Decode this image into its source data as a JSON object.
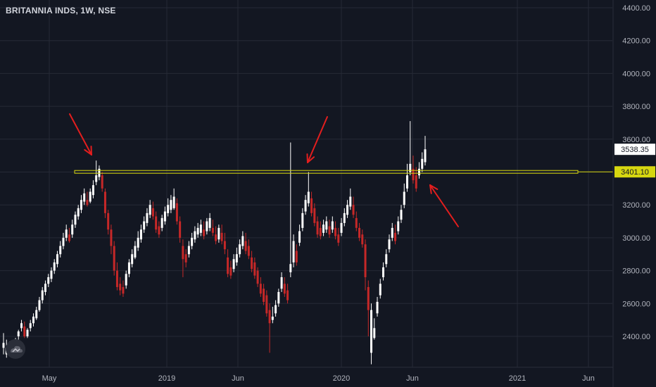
{
  "header": {
    "symbol_title": "BRITANNIA INDS, 1W, NSE"
  },
  "colors": {
    "background": "#131722",
    "grid": "#262a36",
    "up_candle": "#ffffff",
    "down_candle": "#c62828",
    "level_line": "#d7d710",
    "annotation_arrow": "#e31e1e",
    "axis_text": "#b2b5be"
  },
  "chart_data": {
    "type": "candlestick",
    "title": "BRITANNIA INDS, 1W, NSE",
    "ylim": [
      2200,
      4450
    ],
    "y_ticks": [
      "4400.00",
      "4200.00",
      "4000.00",
      "3800.00",
      "3600.00",
      "3400.00",
      "3200.00",
      "3000.00",
      "2800.00",
      "2600.00",
      "2400.00"
    ],
    "x_ticks": [
      "May",
      "2019",
      "Jun",
      "2020",
      "Jun",
      "2021",
      "Jun"
    ],
    "grid": true,
    "price_labels": {
      "last_price": "3538.35",
      "level_price": "3401.10"
    },
    "horizontal_level": 3401.1,
    "annotations": [
      {
        "type": "arrow",
        "direction": "down-right",
        "target": "first peak"
      },
      {
        "type": "arrow",
        "direction": "down-left",
        "target": "second peak"
      },
      {
        "type": "arrow",
        "direction": "up-left",
        "target": "breakout"
      }
    ],
    "candles": [
      [
        2360,
        2420,
        2330,
        2290,
        "up"
      ],
      [
        2330,
        2380,
        2290,
        2270,
        "up"
      ],
      [
        2350,
        2370,
        2330,
        2310,
        "up"
      ],
      [
        2330,
        2350,
        2300,
        2280,
        "up"
      ],
      [
        2380,
        2390,
        2350,
        2330,
        "up"
      ],
      [
        2430,
        2440,
        2400,
        2380,
        "up"
      ],
      [
        2480,
        2500,
        2450,
        2430,
        "up"
      ],
      [
        2460,
        2490,
        2400,
        2390,
        "down"
      ],
      [
        2440,
        2450,
        2400,
        2390,
        "up"
      ],
      [
        2480,
        2500,
        2450,
        2430,
        "up"
      ],
      [
        2520,
        2540,
        2480,
        2460,
        "up"
      ],
      [
        2560,
        2580,
        2510,
        2500,
        "up"
      ],
      [
        2620,
        2640,
        2560,
        2550,
        "up"
      ],
      [
        2680,
        2700,
        2620,
        2600,
        "up"
      ],
      [
        2720,
        2740,
        2670,
        2650,
        "up"
      ],
      [
        2760,
        2780,
        2720,
        2700,
        "up"
      ],
      [
        2800,
        2820,
        2750,
        2730,
        "up"
      ],
      [
        2850,
        2870,
        2800,
        2780,
        "up"
      ],
      [
        2900,
        2920,
        2840,
        2820,
        "up"
      ],
      [
        2950,
        2980,
        2900,
        2880,
        "up"
      ],
      [
        3000,
        3030,
        2950,
        2930,
        "up"
      ],
      [
        3050,
        3080,
        3000,
        2980,
        "up"
      ],
      [
        3020,
        3060,
        2980,
        2970,
        "down"
      ],
      [
        3080,
        3110,
        3020,
        3000,
        "up"
      ],
      [
        3140,
        3160,
        3080,
        3060,
        "up"
      ],
      [
        3180,
        3200,
        3130,
        3110,
        "up"
      ],
      [
        3230,
        3260,
        3170,
        3150,
        "up"
      ],
      [
        3270,
        3300,
        3220,
        3200,
        "up"
      ],
      [
        3230,
        3280,
        3200,
        3190,
        "down"
      ],
      [
        3280,
        3300,
        3220,
        3210,
        "up"
      ],
      [
        3320,
        3350,
        3260,
        3240,
        "up"
      ],
      [
        3380,
        3470,
        3340,
        3320,
        "up"
      ],
      [
        3420,
        3440,
        3370,
        3350,
        "up"
      ],
      [
        3380,
        3400,
        3300,
        3280,
        "down"
      ],
      [
        3280,
        3300,
        3150,
        3120,
        "down"
      ],
      [
        3150,
        3170,
        3050,
        3020,
        "down"
      ],
      [
        3050,
        3080,
        2950,
        2900,
        "down"
      ],
      [
        2950,
        2980,
        2800,
        2770,
        "down"
      ],
      [
        2800,
        2850,
        2700,
        2680,
        "down"
      ],
      [
        2720,
        2760,
        2680,
        2650,
        "down"
      ],
      [
        2700,
        2740,
        2660,
        2640,
        "down"
      ],
      [
        2780,
        2800,
        2710,
        2690,
        "up"
      ],
      [
        2850,
        2870,
        2780,
        2760,
        "up"
      ],
      [
        2900,
        2930,
        2840,
        2820,
        "up"
      ],
      [
        2950,
        2980,
        2880,
        2870,
        "up"
      ],
      [
        3000,
        3040,
        2940,
        2920,
        "up"
      ],
      [
        3050,
        3080,
        2990,
        2970,
        "up"
      ],
      [
        3100,
        3130,
        3050,
        3030,
        "up"
      ],
      [
        3150,
        3180,
        3090,
        3070,
        "up"
      ],
      [
        3200,
        3230,
        3140,
        3120,
        "up"
      ],
      [
        3180,
        3220,
        3130,
        3110,
        "down"
      ],
      [
        3130,
        3160,
        3050,
        3030,
        "down"
      ],
      [
        3070,
        3100,
        3020,
        3000,
        "down"
      ],
      [
        3120,
        3140,
        3060,
        3040,
        "up"
      ],
      [
        3160,
        3190,
        3100,
        3080,
        "up"
      ],
      [
        3200,
        3240,
        3150,
        3130,
        "up"
      ],
      [
        3230,
        3260,
        3170,
        3150,
        "up"
      ],
      [
        3250,
        3300,
        3180,
        3170,
        "up"
      ],
      [
        3210,
        3240,
        3100,
        3080,
        "down"
      ],
      [
        3100,
        3130,
        3000,
        2970,
        "down"
      ],
      [
        2950,
        2990,
        2870,
        2760,
        "down"
      ],
      [
        2900,
        2930,
        2850,
        2820,
        "down"
      ],
      [
        2950,
        2980,
        2900,
        2880,
        "up"
      ],
      [
        3000,
        3030,
        2950,
        2930,
        "up"
      ],
      [
        3040,
        3070,
        2990,
        2970,
        "up"
      ],
      [
        3060,
        3090,
        3020,
        3000,
        "up"
      ],
      [
        3080,
        3110,
        3030,
        3010,
        "up"
      ],
      [
        3050,
        3100,
        3010,
        2990,
        "down"
      ],
      [
        3100,
        3120,
        3040,
        3020,
        "up"
      ],
      [
        3120,
        3150,
        3060,
        3040,
        "up"
      ],
      [
        3060,
        3110,
        3030,
        3010,
        "down"
      ],
      [
        3020,
        3070,
        2980,
        2960,
        "down"
      ],
      [
        3060,
        3080,
        2990,
        2970,
        "up"
      ],
      [
        3030,
        3080,
        2980,
        2960,
        "down"
      ],
      [
        2980,
        3030,
        2930,
        2900,
        "down"
      ],
      [
        2880,
        2930,
        2780,
        2760,
        "down"
      ],
      [
        2820,
        2860,
        2770,
        2750,
        "down"
      ],
      [
        2870,
        2900,
        2810,
        2790,
        "up"
      ],
      [
        2900,
        2940,
        2850,
        2830,
        "up"
      ],
      [
        2960,
        2990,
        2900,
        2880,
        "up"
      ],
      [
        3010,
        3040,
        2950,
        2930,
        "up"
      ],
      [
        2980,
        3030,
        2920,
        2900,
        "down"
      ],
      [
        2950,
        2990,
        2890,
        2870,
        "down"
      ],
      [
        2880,
        2920,
        2810,
        2790,
        "down"
      ],
      [
        2850,
        2880,
        2770,
        2750,
        "down"
      ],
      [
        2800,
        2820,
        2720,
        2700,
        "down"
      ],
      [
        2720,
        2760,
        2660,
        2640,
        "down"
      ],
      [
        2690,
        2720,
        2610,
        2590,
        "down"
      ],
      [
        2650,
        2680,
        2540,
        2520,
        "down"
      ],
      [
        2560,
        2600,
        2480,
        2300,
        "down"
      ],
      [
        2520,
        2580,
        2500,
        2480,
        "up"
      ],
      [
        2590,
        2620,
        2540,
        2520,
        "up"
      ],
      [
        2670,
        2690,
        2600,
        2580,
        "up"
      ],
      [
        2760,
        2790,
        2690,
        2670,
        "up"
      ],
      [
        2720,
        2760,
        2660,
        2640,
        "down"
      ],
      [
        2680,
        2720,
        2620,
        2600,
        "down"
      ],
      [
        2840,
        3580,
        2790,
        2760,
        "up"
      ],
      [
        2980,
        3020,
        2850,
        2820,
        "up"
      ],
      [
        2920,
        2960,
        2850,
        2830,
        "down"
      ],
      [
        3040,
        3080,
        2970,
        2950,
        "up"
      ],
      [
        3150,
        3180,
        3060,
        3040,
        "up"
      ],
      [
        3230,
        3260,
        3160,
        3140,
        "up"
      ],
      [
        3280,
        3400,
        3210,
        3190,
        "up"
      ],
      [
        3240,
        3280,
        3150,
        3130,
        "down"
      ],
      [
        3180,
        3210,
        3090,
        3070,
        "down"
      ],
      [
        3100,
        3130,
        3020,
        3000,
        "down"
      ],
      [
        3060,
        3100,
        3010,
        2990,
        "down"
      ],
      [
        3080,
        3110,
        3030,
        3010,
        "up"
      ],
      [
        3100,
        3130,
        3050,
        3030,
        "up"
      ],
      [
        3070,
        3110,
        3020,
        3000,
        "down"
      ],
      [
        3100,
        3130,
        3050,
        3030,
        "up"
      ],
      [
        3060,
        3100,
        3010,
        2990,
        "down"
      ],
      [
        3020,
        3060,
        2970,
        2950,
        "down"
      ],
      [
        3090,
        3120,
        3030,
        3010,
        "up"
      ],
      [
        3150,
        3180,
        3090,
        3070,
        "up"
      ],
      [
        3200,
        3230,
        3140,
        3120,
        "up"
      ],
      [
        3250,
        3300,
        3190,
        3170,
        "up"
      ],
      [
        3200,
        3250,
        3140,
        3120,
        "down"
      ],
      [
        3120,
        3160,
        3060,
        3040,
        "down"
      ],
      [
        3060,
        3090,
        3000,
        2980,
        "down"
      ],
      [
        3020,
        3050,
        2960,
        2940,
        "down"
      ],
      [
        2960,
        2990,
        2760,
        2680,
        "down"
      ],
      [
        2700,
        2740,
        2560,
        2400,
        "down"
      ],
      [
        2560,
        2600,
        2300,
        2230,
        "up"
      ],
      [
        2450,
        2510,
        2390,
        2380,
        "up"
      ],
      [
        2610,
        2640,
        2540,
        2520,
        "up"
      ],
      [
        2720,
        2750,
        2650,
        2630,
        "up"
      ],
      [
        2820,
        2850,
        2760,
        2740,
        "up"
      ],
      [
        2900,
        2930,
        2840,
        2820,
        "up"
      ],
      [
        2990,
        3020,
        2930,
        2910,
        "up"
      ],
      [
        3060,
        3090,
        3000,
        2980,
        "up"
      ],
      [
        3030,
        3080,
        2980,
        2960,
        "down"
      ],
      [
        3100,
        3130,
        3040,
        3020,
        "up"
      ],
      [
        3170,
        3200,
        3110,
        3090,
        "up"
      ],
      [
        3280,
        3330,
        3200,
        3180,
        "up"
      ],
      [
        3380,
        3450,
        3300,
        3280,
        "up"
      ],
      [
        3450,
        3710,
        3400,
        3380,
        "up"
      ],
      [
        3420,
        3500,
        3350,
        3330,
        "down"
      ],
      [
        3380,
        3430,
        3300,
        3280,
        "down"
      ],
      [
        3420,
        3460,
        3380,
        3360,
        "up"
      ],
      [
        3480,
        3520,
        3420,
        3400,
        "up"
      ],
      [
        3538.35,
        3620,
        3460,
        3440,
        "up"
      ]
    ]
  }
}
